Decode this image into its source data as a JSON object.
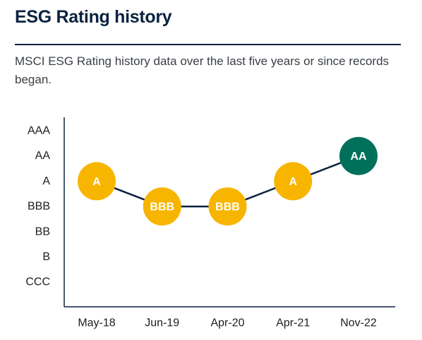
{
  "title": "ESG Rating history",
  "subtitle": "MSCI ESG Rating history data over the last five years or since records began.",
  "chart_data": {
    "type": "line",
    "y_categories": [
      "AAA",
      "AA",
      "A",
      "BBB",
      "BB",
      "B",
      "CCC"
    ],
    "x": [
      "May-18",
      "Jun-19",
      "Apr-20",
      "Apr-21",
      "Nov-22"
    ],
    "values": [
      "A",
      "BBB",
      "BBB",
      "A",
      "AA"
    ],
    "colors": {
      "axis": "#0b2240",
      "line": "#0b2240",
      "past_point": "#f7b500",
      "latest_point": "#00705a"
    }
  }
}
